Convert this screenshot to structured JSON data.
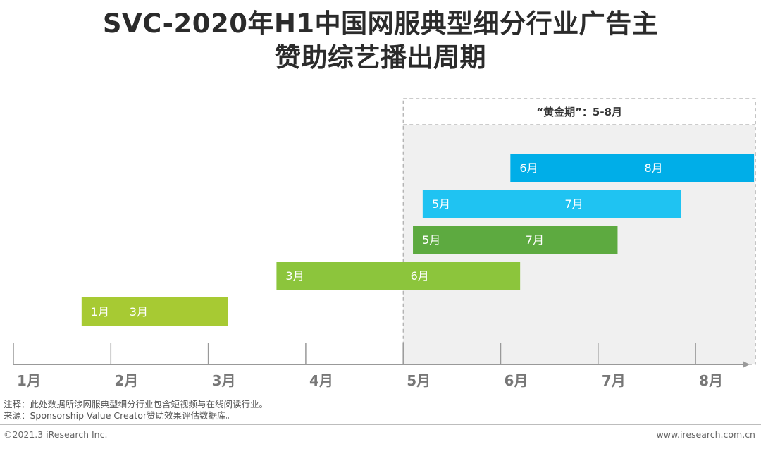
{
  "title": {
    "line1": "SVC-2020年H1中国网服典型细分行业广告主",
    "line2": "赞助综艺播出周期"
  },
  "chart_data": {
    "type": "gantt",
    "x_ticks": [
      "1月",
      "2月",
      "3月",
      "4月",
      "5月",
      "6月",
      "7月",
      "8月"
    ],
    "highlight": {
      "label": "“黄金期”：5-8月",
      "start": 5,
      "end": 8.6,
      "fill": "#f0f0f0"
    },
    "bars": [
      {
        "start": 6.1,
        "end": 8.6,
        "start_label": "6月",
        "end_label": "8月",
        "color": "#00aee8"
      },
      {
        "start": 5.2,
        "end": 7.85,
        "start_label": "5月",
        "end_label": "7月",
        "color": "#1fc3f2"
      },
      {
        "start": 5.1,
        "end": 7.2,
        "start_label": "5月",
        "end_label": "7月",
        "color": "#5daa40"
      },
      {
        "start": 3.7,
        "end": 6.2,
        "start_label": "3月",
        "end_label": "6月",
        "color": "#8cc53c"
      },
      {
        "start": 1.7,
        "end": 3.2,
        "start_label": "1月",
        "end_label": "3月",
        "color": "#a7ca33"
      }
    ]
  },
  "notes": {
    "note": "注释：此处数据所涉网服典型细分行业包含短视频与在线阅读行业。",
    "source": "来源：Sponsorship Value Creator赞助效果评估数据库。"
  },
  "footer": {
    "copyright": "©2021.3 iResearch Inc.",
    "website": "www.iresearch.com.cn"
  }
}
